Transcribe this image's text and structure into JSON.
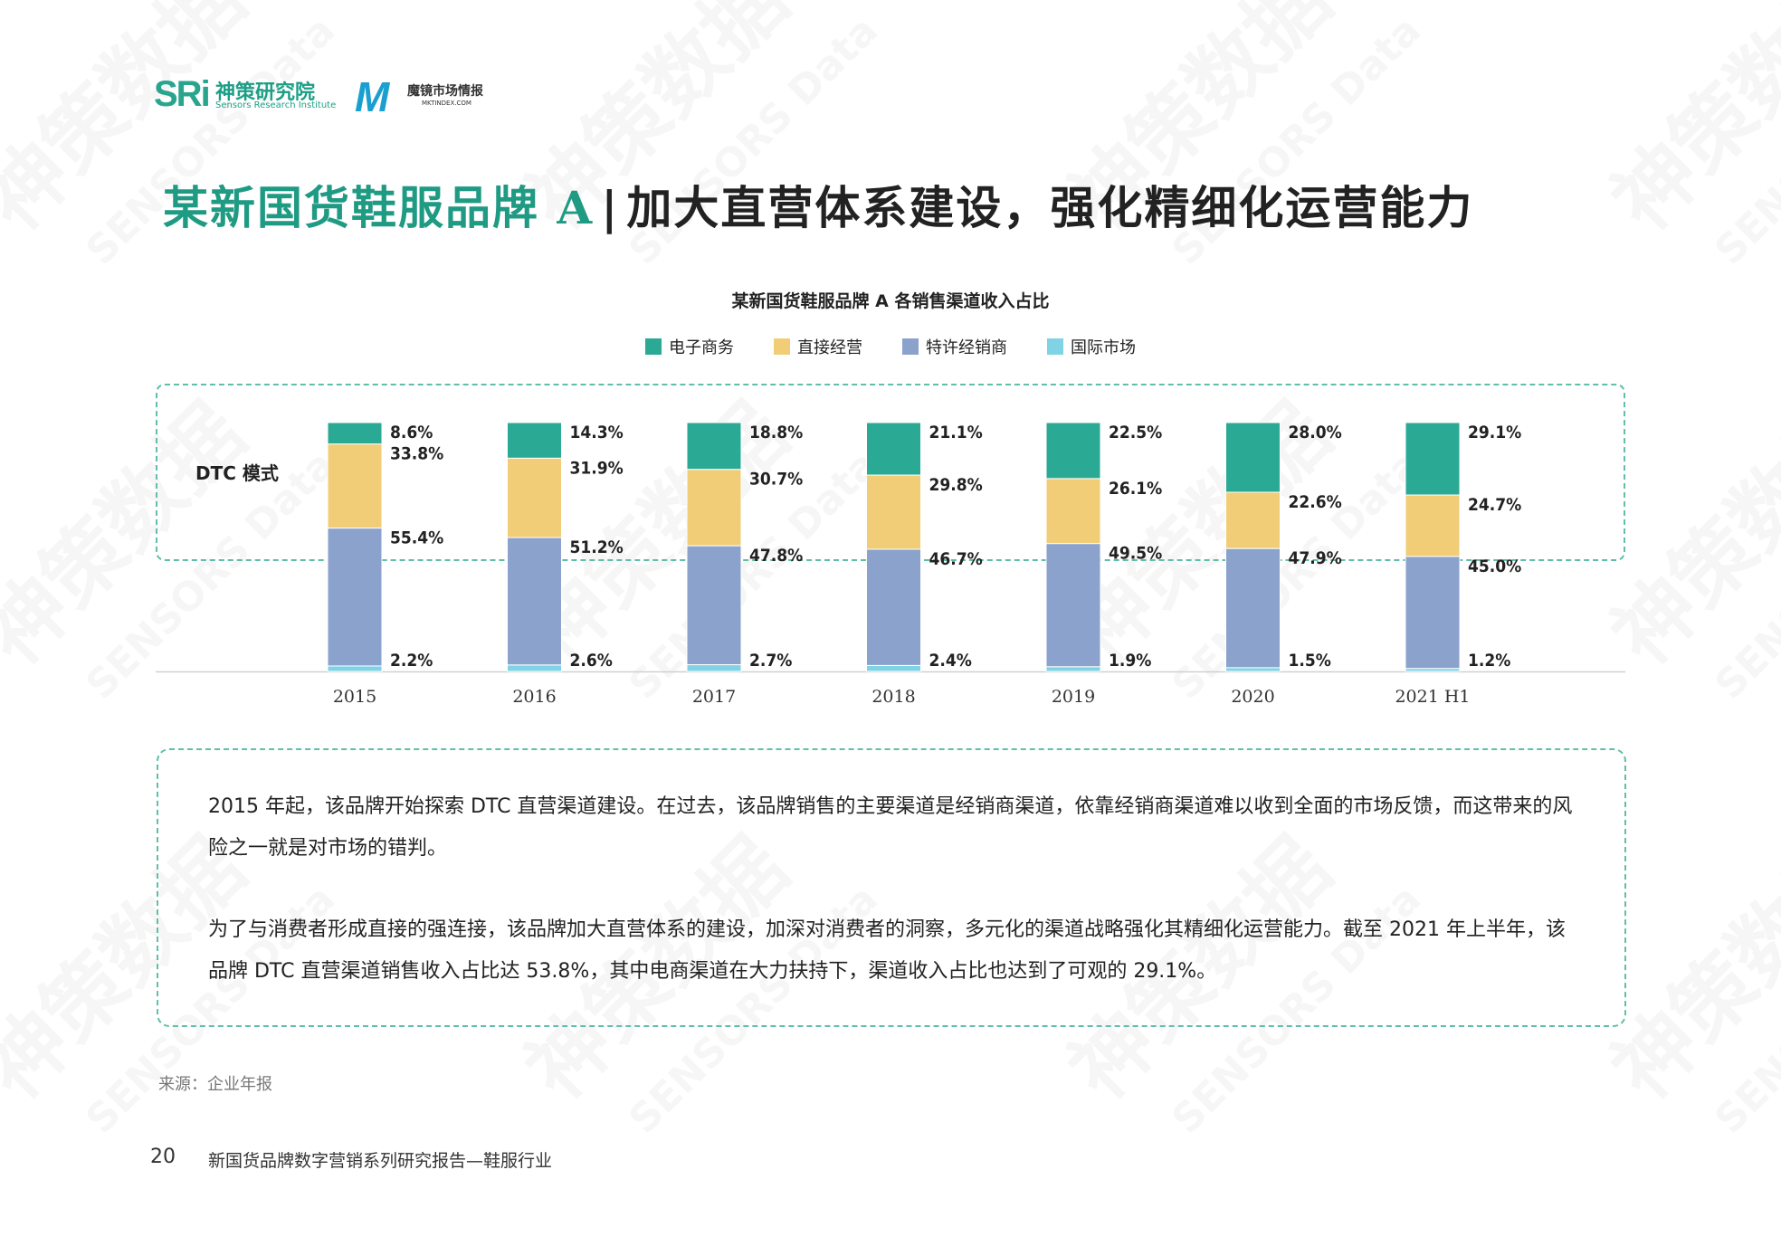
{
  "header": {
    "logo_sri_mark": "SRi",
    "logo_sri_cn": "神策研究院",
    "logo_sri_en": "Sensors Research Institute",
    "logo_mj_cn": "魔镜市场情报",
    "logo_mj_en": "MKTINDEX.COM"
  },
  "title": {
    "highlight": "某新国货鞋服品牌 A",
    "separator": "|",
    "rest": "加大直营体系建设，强化精细化运营能力"
  },
  "chart_data": {
    "type": "bar",
    "stacked": true,
    "title": "某新国货鞋服品牌 A 各销售渠道收入占比",
    "categories": [
      "2015",
      "2016",
      "2017",
      "2018",
      "2019",
      "2020",
      "2021 H1"
    ],
    "series": [
      {
        "name": "国际市场",
        "color": "#7fd3e5",
        "values": [
          2.2,
          2.6,
          2.7,
          2.4,
          1.9,
          1.5,
          1.2
        ]
      },
      {
        "name": "特许经销商",
        "color": "#8aa2cc",
        "values": [
          55.4,
          51.2,
          47.8,
          46.7,
          49.5,
          47.9,
          45.0
        ]
      },
      {
        "name": "直接经营",
        "color": "#f1cd78",
        "values": [
          33.8,
          31.9,
          30.7,
          29.8,
          26.1,
          22.6,
          24.7
        ]
      },
      {
        "name": "电子商务",
        "color": "#2aa995",
        "values": [
          8.6,
          14.3,
          18.8,
          21.1,
          22.5,
          28.0,
          29.1
        ]
      }
    ],
    "legend_order": [
      "电子商务",
      "直接经营",
      "特许经销商",
      "国际市场"
    ],
    "legend_position": "top-center",
    "ylim": [
      0,
      100
    ],
    "annotation": "DTC 模式"
  },
  "description": {
    "para1": "2015 年起，该品牌开始探索 DTC 直营渠道建设。在过去，该品牌销售的主要渠道是经销商渠道，依靠经销商渠道难以收到全面的市场反馈，而这带来的风险之一就是对市场的错判。",
    "para2": "为了与消费者形成直接的强连接，该品牌加大直营体系的建设，加深对消费者的洞察，多元化的渠道战略强化其精细化运营能力。截至 2021 年上半年，该品牌 DTC 直营渠道销售收入占比达 53.8%，其中电商渠道在大力扶持下，渠道收入占比也达到了可观的 29.1%。"
  },
  "footer": {
    "source": "来源：企业年报",
    "page_number": "20",
    "report_name": "新国货品牌数字营销系列研究报告—鞋服行业"
  },
  "watermark": {
    "text_cn": "神策数据",
    "text_en": "SENSORS Data"
  }
}
